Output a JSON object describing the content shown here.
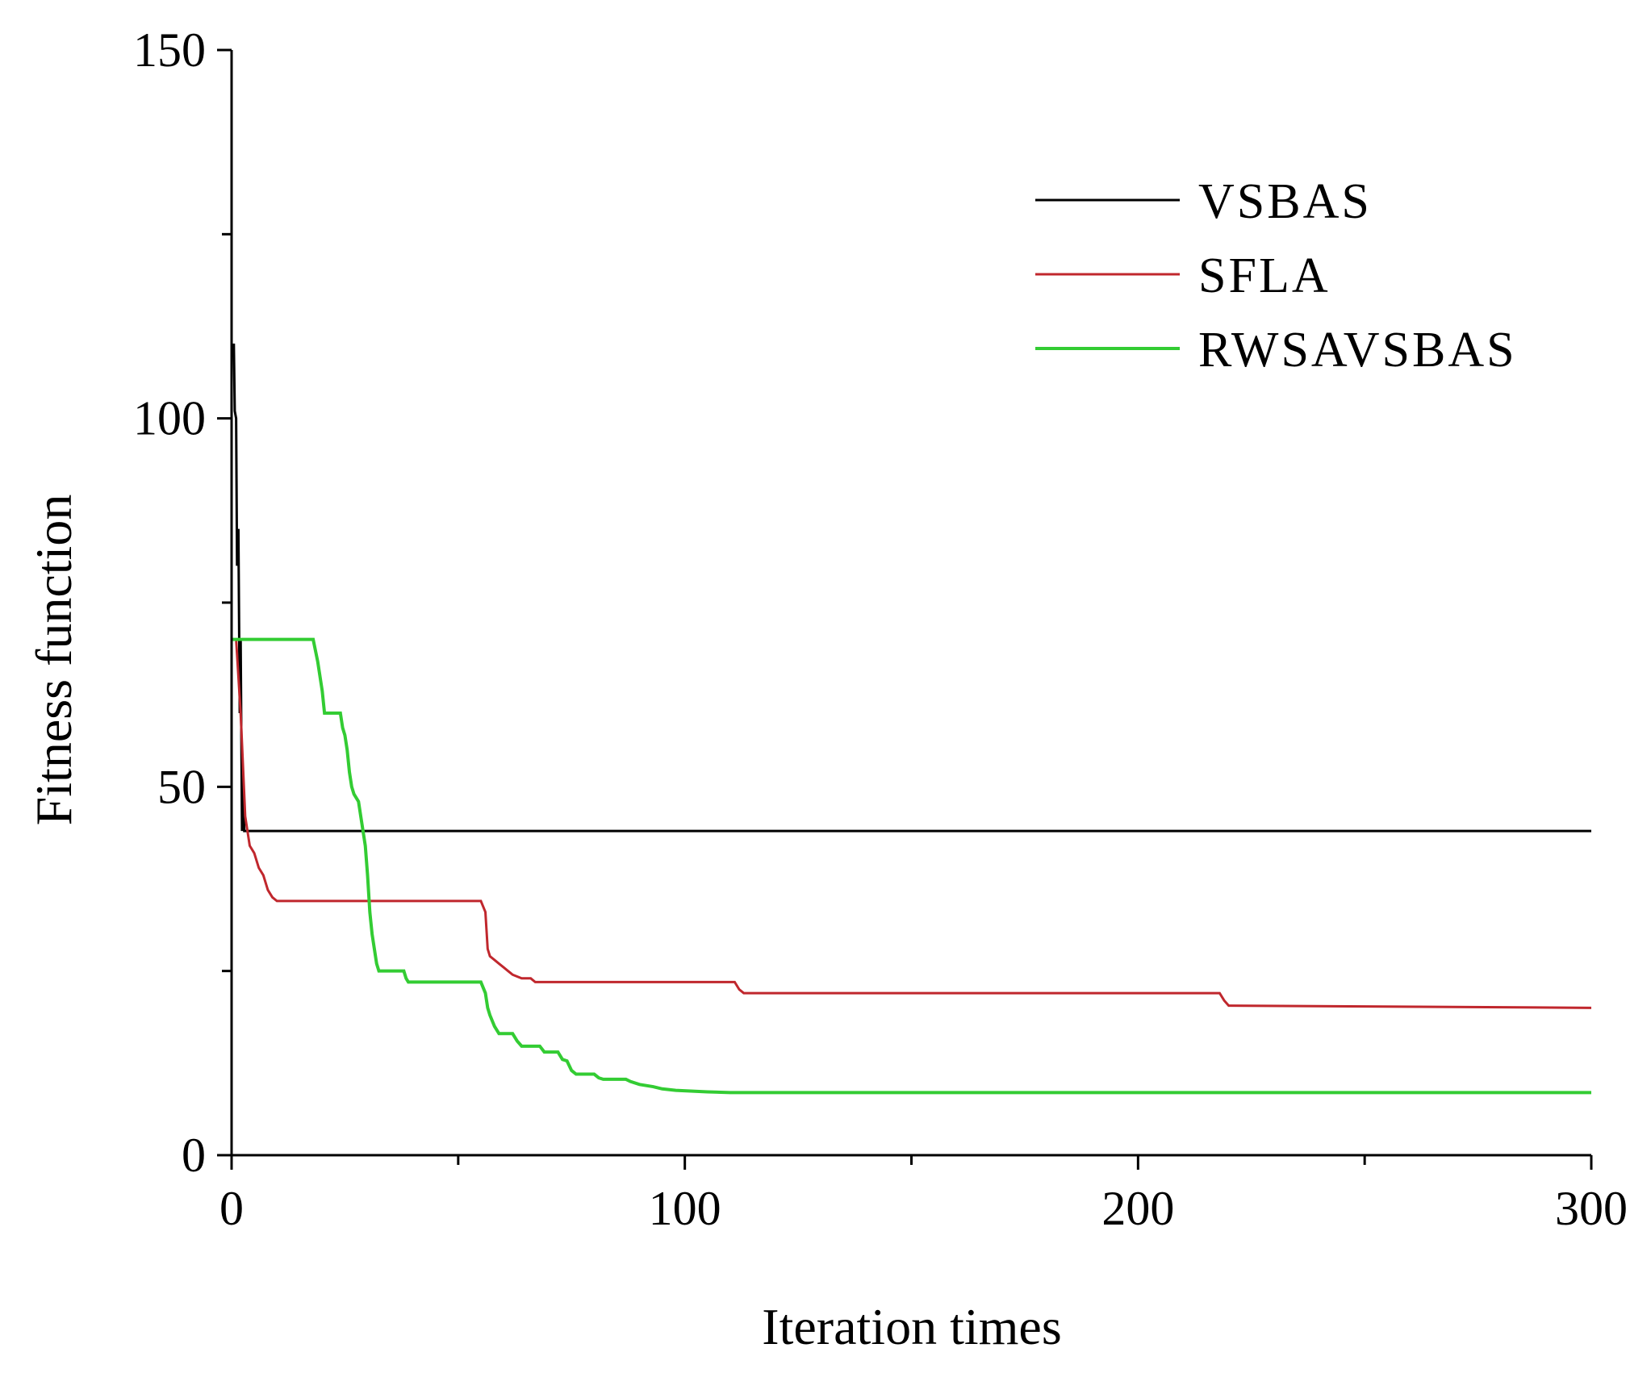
{
  "chart_data": {
    "type": "line",
    "title": "",
    "xlabel": "Iteration times",
    "ylabel": "Fitness function",
    "xlim": [
      0,
      300
    ],
    "ylim": [
      0,
      150
    ],
    "x_ticks": [
      0,
      100,
      200,
      300
    ],
    "y_ticks": [
      0,
      50,
      100,
      150
    ],
    "x_minor_ticks": [
      50,
      150,
      250
    ],
    "y_minor_ticks": [
      25,
      75,
      125
    ],
    "legend_position": "top-right",
    "series": [
      {
        "name": "VSBAS",
        "color": "#000000",
        "width": 3,
        "points": [
          [
            0,
            110
          ],
          [
            0.5,
            110
          ],
          [
            0.7,
            101
          ],
          [
            1,
            100
          ],
          [
            1.2,
            80
          ],
          [
            1.5,
            85
          ],
          [
            1.8,
            60
          ],
          [
            2,
            70
          ],
          [
            2.3,
            44
          ],
          [
            2.5,
            50
          ],
          [
            2.8,
            44
          ],
          [
            3,
            44
          ],
          [
            300,
            44
          ]
        ]
      },
      {
        "name": "SFLA",
        "color": "#c0272d",
        "width": 3,
        "points": [
          [
            0,
            70
          ],
          [
            1,
            70
          ],
          [
            2,
            60
          ],
          [
            3,
            46
          ],
          [
            4,
            42
          ],
          [
            5,
            41
          ],
          [
            6,
            39
          ],
          [
            7,
            38
          ],
          [
            8,
            36
          ],
          [
            9,
            35
          ],
          [
            10,
            34.5
          ],
          [
            55,
            34.5
          ],
          [
            56,
            33
          ],
          [
            56.5,
            28
          ],
          [
            57,
            27
          ],
          [
            58,
            26.5
          ],
          [
            59,
            26
          ],
          [
            60,
            25.5
          ],
          [
            61,
            25
          ],
          [
            62,
            24.5
          ],
          [
            64,
            24
          ],
          [
            66,
            24
          ],
          [
            67,
            23.5
          ],
          [
            111,
            23.5
          ],
          [
            112,
            22.5
          ],
          [
            113,
            22
          ],
          [
            218,
            22
          ],
          [
            219,
            21
          ],
          [
            220,
            20.3
          ],
          [
            300,
            20
          ]
        ]
      },
      {
        "name": "RWSAVSBAS",
        "color": "#33cc33",
        "width": 4,
        "points": [
          [
            0,
            70
          ],
          [
            18,
            70
          ],
          [
            19,
            67
          ],
          [
            19.5,
            65
          ],
          [
            20,
            63
          ],
          [
            20.5,
            60
          ],
          [
            24,
            60
          ],
          [
            24.5,
            58
          ],
          [
            25,
            57
          ],
          [
            25.5,
            55
          ],
          [
            26,
            52
          ],
          [
            26.5,
            50
          ],
          [
            27,
            49
          ],
          [
            28,
            48
          ],
          [
            28.5,
            46
          ],
          [
            29,
            44
          ],
          [
            29.5,
            42
          ],
          [
            30,
            38
          ],
          [
            30.5,
            33
          ],
          [
            31,
            30
          ],
          [
            31.5,
            28
          ],
          [
            32,
            26
          ],
          [
            32.5,
            25
          ],
          [
            38,
            25
          ],
          [
            38.5,
            24
          ],
          [
            39,
            23.5
          ],
          [
            55,
            23.5
          ],
          [
            56,
            22
          ],
          [
            56.5,
            20
          ],
          [
            57,
            19
          ],
          [
            58,
            17.5
          ],
          [
            59,
            16.5
          ],
          [
            62,
            16.5
          ],
          [
            63,
            15.5
          ],
          [
            64,
            14.8
          ],
          [
            68,
            14.8
          ],
          [
            69,
            14
          ],
          [
            72,
            14
          ],
          [
            73,
            13
          ],
          [
            74,
            12.8
          ],
          [
            75,
            11.5
          ],
          [
            76,
            11
          ],
          [
            80,
            11
          ],
          [
            81,
            10.5
          ],
          [
            82,
            10.3
          ],
          [
            87,
            10.3
          ],
          [
            88,
            10
          ],
          [
            90,
            9.6
          ],
          [
            93,
            9.3
          ],
          [
            95,
            9
          ],
          [
            98,
            8.8
          ],
          [
            105,
            8.6
          ],
          [
            110,
            8.5
          ],
          [
            300,
            8.5
          ]
        ]
      }
    ]
  }
}
